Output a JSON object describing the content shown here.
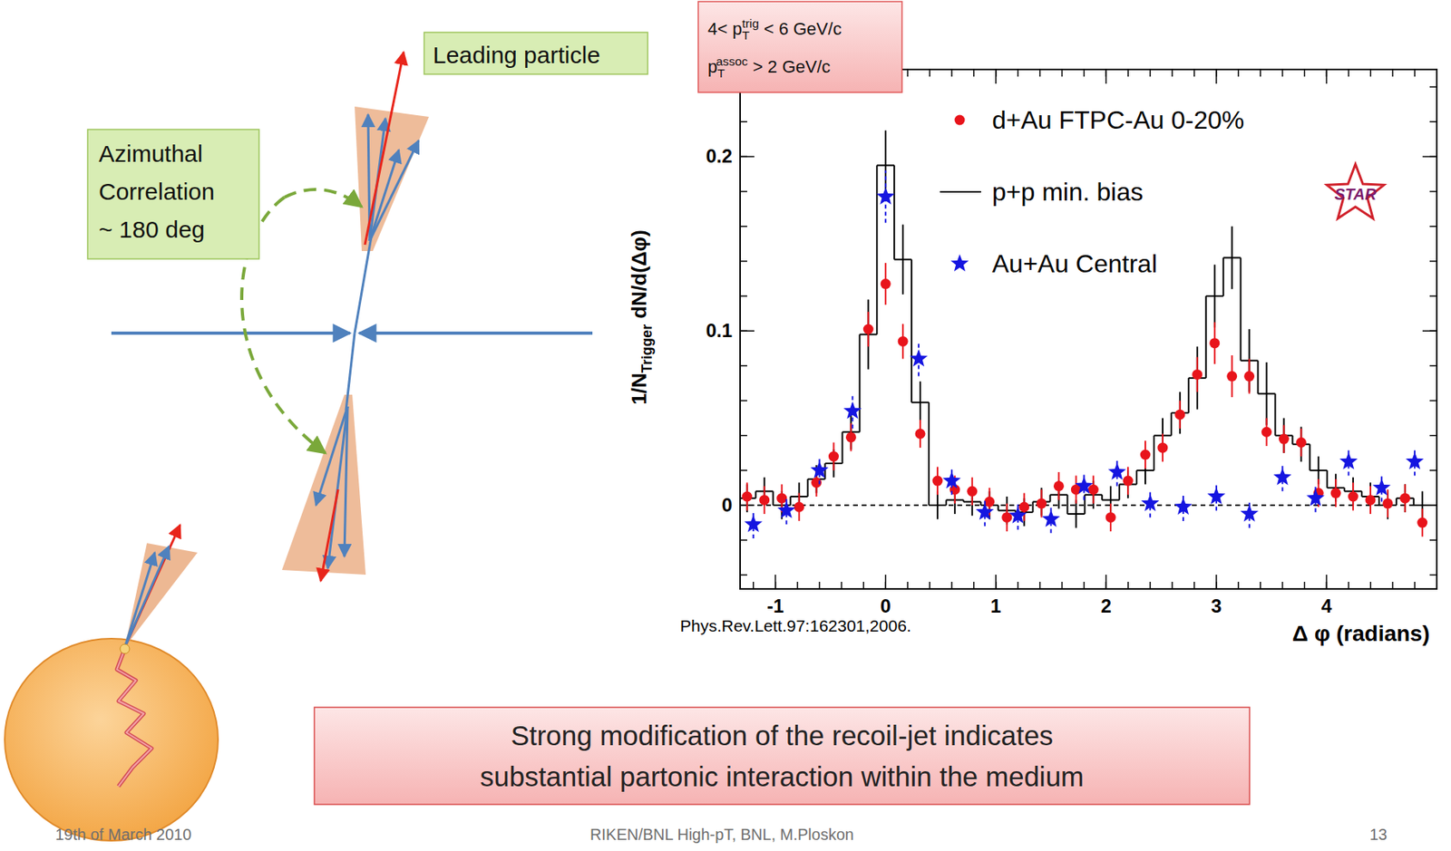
{
  "chart_data": {
    "type": "scatter",
    "xlabel": "Δ φ (radians)",
    "ylabel": {
      "prefix": "1/N",
      "sub": "Trigger",
      "suffix": " dN/d(Δφ)"
    },
    "xlim": [
      -1.32,
      5.0
    ],
    "ylim": [
      -0.048,
      0.25
    ],
    "xticks": [
      -1,
      0,
      1,
      2,
      3,
      4
    ],
    "yticks": [
      0,
      0.1,
      0.2
    ],
    "legend": "upper right",
    "logo": "STAR",
    "annotations": {
      "trigger": {
        "prefix": "4< p",
        "sub": "T",
        "sup": "trig",
        "suffix": " < 6 GeV/c"
      },
      "assoc": {
        "prefix": "p",
        "sub": "T",
        "sup": "assoc",
        "suffix": " > 2 GeV/c"
      },
      "citation": "Phys.Rev.Lett.97:162301,2006."
    },
    "series": [
      {
        "name": "d+Au FTPC-Au 0-20%",
        "type": "scatter",
        "marker": "circle",
        "color": "#e8141b",
        "x": [
          -1.257,
          -1.1,
          -0.942,
          -0.785,
          -0.628,
          -0.471,
          -0.314,
          -0.157,
          0,
          0.157,
          0.314,
          0.471,
          0.628,
          0.785,
          0.942,
          1.1,
          1.257,
          1.414,
          1.571,
          1.728,
          1.885,
          2.042,
          2.199,
          2.356,
          2.513,
          2.67,
          2.827,
          2.985,
          3.142,
          3.299,
          3.456,
          3.613,
          3.77,
          3.927,
          4.084,
          4.241,
          4.398,
          4.555,
          4.712,
          4.869
        ],
        "values": [
          0.005,
          0.003,
          0.004,
          -0.001,
          0.013,
          0.028,
          0.039,
          0.101,
          0.127,
          0.094,
          0.041,
          0.014,
          0.009,
          0.008,
          0.002,
          -0.007,
          -0.001,
          0.001,
          0.011,
          0.009,
          0.009,
          -0.007,
          0.014,
          0.029,
          0.033,
          0.052,
          0.075,
          0.093,
          0.074,
          0.074,
          0.042,
          0.038,
          0.036,
          0.007,
          0.007,
          0.005,
          0.003,
          0.001,
          0.004,
          -0.01
        ],
        "errors": [
          0.008,
          0.008,
          0.008,
          0.008,
          0.008,
          0.008,
          0.008,
          0.01,
          0.012,
          0.01,
          0.008,
          0.008,
          0.008,
          0.008,
          0.008,
          0.008,
          0.008,
          0.008,
          0.008,
          0.008,
          0.008,
          0.008,
          0.008,
          0.008,
          0.008,
          0.008,
          0.01,
          0.012,
          0.012,
          0.01,
          0.008,
          0.008,
          0.008,
          0.008,
          0.008,
          0.008,
          0.008,
          0.008,
          0.008,
          0.008
        ]
      },
      {
        "name": "p+p min. bias",
        "type": "step",
        "color": "#000000",
        "x": [
          -1.257,
          -1.1,
          -0.942,
          -0.785,
          -0.628,
          -0.471,
          -0.314,
          -0.157,
          0,
          0.157,
          0.314,
          0.471,
          0.628,
          0.785,
          0.942,
          1.1,
          1.257,
          1.414,
          1.571,
          1.728,
          1.885,
          2.042,
          2.199,
          2.356,
          2.513,
          2.67,
          2.827,
          2.985,
          3.142,
          3.299,
          3.456,
          3.613,
          3.77,
          3.927,
          4.084,
          4.241,
          4.398,
          4.555,
          4.712,
          4.869
        ],
        "values": [
          0.004,
          0.008,
          0.0,
          0.005,
          0.015,
          0.024,
          0.042,
          0.098,
          0.195,
          0.141,
          0.059,
          0.0,
          0.003,
          0.002,
          0.0,
          -0.003,
          -0.004,
          0.002,
          0.006,
          -0.005,
          0.006,
          0.003,
          0.012,
          0.02,
          0.04,
          0.053,
          0.073,
          0.12,
          0.142,
          0.083,
          0.064,
          0.04,
          0.035,
          0.02,
          0.01,
          0.008,
          0.005,
          0.0,
          0.004,
          0.0
        ],
        "errors": [
          0.008,
          0.008,
          0.008,
          0.008,
          0.008,
          0.008,
          0.01,
          0.02,
          0.02,
          0.02,
          0.012,
          0.008,
          0.008,
          0.008,
          0.008,
          0.008,
          0.008,
          0.008,
          0.008,
          0.008,
          0.008,
          0.008,
          0.008,
          0.008,
          0.01,
          0.012,
          0.018,
          0.018,
          0.018,
          0.018,
          0.018,
          0.01,
          0.01,
          0.008,
          0.008,
          0.008,
          0.008,
          0.008,
          0.008,
          0.008
        ]
      },
      {
        "name": "Au+Au Central",
        "type": "scatter",
        "marker": "star",
        "color": "#1515e0",
        "line_style": "dashed",
        "x": [
          -1.2,
          -0.9,
          -0.6,
          -0.3,
          0,
          0.3,
          0.6,
          0.9,
          1.2,
          1.5,
          1.8,
          2.1,
          2.4,
          2.7,
          3.0,
          3.3,
          3.6,
          3.9,
          4.2,
          4.5,
          4.8
        ],
        "values": [
          -0.011,
          -0.003,
          0.02,
          0.054,
          0.177,
          0.084,
          0.014,
          -0.004,
          -0.006,
          -0.008,
          0.011,
          0.019,
          0.001,
          -0.001,
          0.005,
          -0.005,
          0.016,
          0.004,
          0.025,
          0.01,
          0.025
        ],
        "errors": [
          0.008,
          0.008,
          0.008,
          0.01,
          0.015,
          0.01,
          0.008,
          0.008,
          0.008,
          0.008,
          0.008,
          0.008,
          0.008,
          0.008,
          0.008,
          0.008,
          0.008,
          0.008,
          0.008,
          0.008,
          0.008
        ]
      }
    ]
  },
  "slide": {
    "leading_particle": "Leading particle",
    "correlation": [
      "Azimuthal",
      "Correlation",
      "~ 180 deg"
    ],
    "conclusion": [
      "Strong modification of the recoil-jet indicates",
      "substantial partonic interaction within the medium"
    ],
    "footer": {
      "date": "19th of March 2010",
      "event": "RIKEN/BNL High-pT, BNL, M.Ploskon",
      "page": "13"
    }
  }
}
